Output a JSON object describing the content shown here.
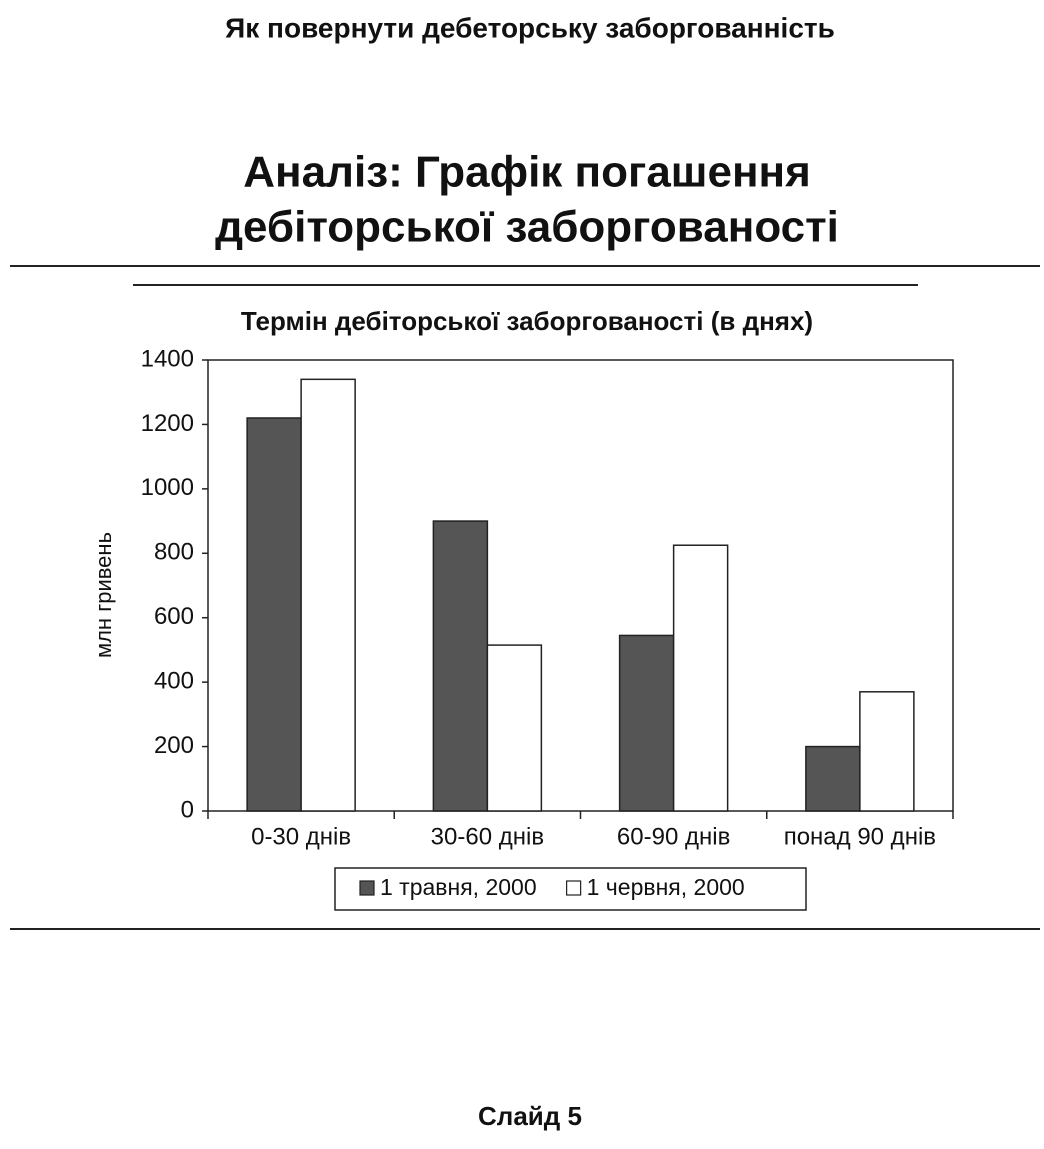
{
  "header": "Як повернути дебеторську заборгованність",
  "slide_title": [
    "Аналіз: Графік погашення",
    "дебіторської заборгованості"
  ],
  "footer": "Слайд 5",
  "chart_data": {
    "type": "bar",
    "title": "Термін дебіторської заборгованості (в днях)",
    "y_label": "млн гривень",
    "categories": [
      "0-30 днів",
      "30-60 днів",
      "60-90 днів",
      "понад 90 днів"
    ],
    "series": [
      {
        "name": "1 травня, 2000",
        "color": "#555555",
        "values": [
          1220,
          900,
          545,
          200
        ]
      },
      {
        "name": "1 червня, 2000",
        "color": "#ffffff",
        "values": [
          1340,
          515,
          825,
          370
        ]
      }
    ],
    "ylim": [
      0,
      1400
    ],
    "yticks": [
      0,
      200,
      400,
      600,
      800,
      1000,
      1200,
      1400
    ],
    "grid": false,
    "legend": "bottom"
  }
}
